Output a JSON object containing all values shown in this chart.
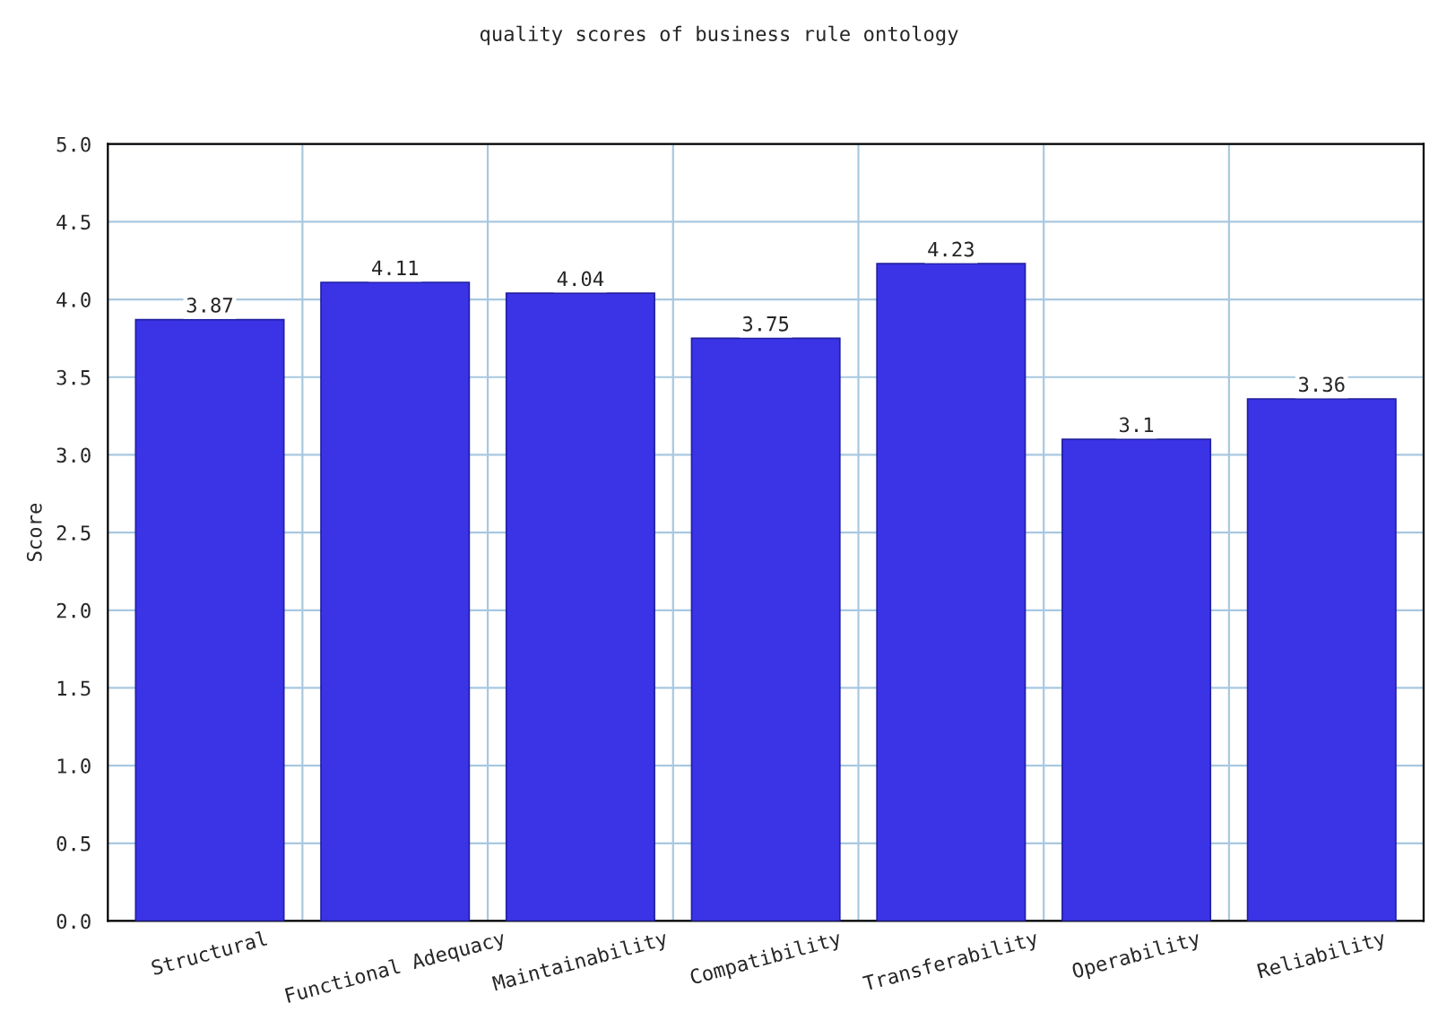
{
  "chart_data": {
    "type": "bar",
    "title": "quality scores of business rule ontology",
    "ylabel": "Score",
    "categories": [
      "Structural",
      "Functional Adequacy",
      "Maintainability",
      "Compatibility",
      "Transferability",
      "Operability",
      "Reliability"
    ],
    "values": [
      3.87,
      4.11,
      4.04,
      3.75,
      4.23,
      3.1,
      3.36
    ],
    "color": "#3b33e6",
    "data_labels": true,
    "ylim": [
      0,
      5
    ],
    "yticks": [
      {
        "value": 0,
        "label": "0.0"
      },
      0.5,
      {
        "value": 1,
        "label": "1.0"
      },
      1.5,
      {
        "value": 2,
        "label": "2.0"
      },
      2.5,
      {
        "value": 3,
        "label": "3.0"
      },
      3.5,
      {
        "value": 4,
        "label": "4.0"
      },
      4.5,
      {
        "value": 5,
        "label": "5.0"
      }
    ],
    "grid": true
  }
}
